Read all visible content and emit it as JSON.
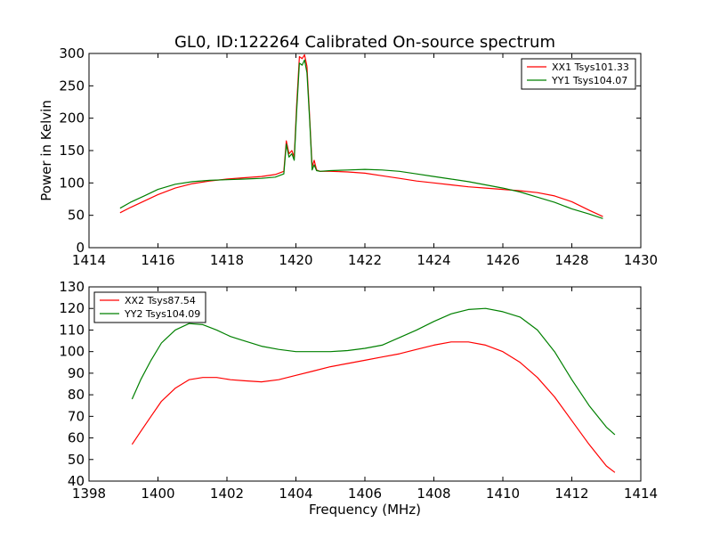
{
  "chart_data": [
    {
      "type": "line",
      "title": "GL0, ID:122264 Calibrated On-source spectrum",
      "xlabel": "",
      "ylabel": "Power in Kelvin",
      "xlim": [
        1414,
        1430
      ],
      "ylim": [
        0,
        300
      ],
      "xticks": [
        "1414",
        "1416",
        "1418",
        "1420",
        "1422",
        "1424",
        "1426",
        "1428",
        "1430"
      ],
      "yticks": [
        "0",
        "50",
        "100",
        "150",
        "200",
        "250",
        "300"
      ],
      "grid": false,
      "legend_position": "top-right",
      "series": [
        {
          "name": "XX1 Tsys101.33",
          "color": "#ff0000",
          "x": [
            1414.9,
            1415.2,
            1415.6,
            1416.0,
            1416.5,
            1417.0,
            1417.5,
            1418.0,
            1418.5,
            1419.0,
            1419.4,
            1419.65,
            1419.72,
            1419.8,
            1419.88,
            1419.95,
            1420.02,
            1420.1,
            1420.18,
            1420.25,
            1420.32,
            1420.4,
            1420.47,
            1420.53,
            1420.6,
            1420.7,
            1421.0,
            1421.5,
            1422.0,
            1422.5,
            1423.0,
            1423.5,
            1424.0,
            1424.5,
            1425.0,
            1425.5,
            1426.0,
            1426.5,
            1427.0,
            1427.5,
            1428.0,
            1428.5,
            1428.9
          ],
          "y": [
            54,
            62,
            72,
            82,
            92,
            99,
            103,
            106,
            108,
            110,
            113,
            118,
            165,
            145,
            150,
            140,
            220,
            295,
            292,
            298,
            280,
            200,
            125,
            135,
            120,
            118,
            118,
            117,
            115,
            111,
            107,
            103,
            100,
            97,
            94,
            92,
            90,
            88,
            85,
            80,
            71,
            58,
            48
          ]
        },
        {
          "name": "YY1 Tsys104.07",
          "color": "#008000",
          "x": [
            1414.9,
            1415.2,
            1415.6,
            1416.0,
            1416.5,
            1417.0,
            1417.5,
            1418.0,
            1418.5,
            1419.0,
            1419.4,
            1419.65,
            1419.72,
            1419.8,
            1419.88,
            1419.95,
            1420.02,
            1420.1,
            1420.18,
            1420.25,
            1420.32,
            1420.4,
            1420.47,
            1420.53,
            1420.6,
            1420.7,
            1421.0,
            1421.5,
            1422.0,
            1422.5,
            1423.0,
            1423.5,
            1424.0,
            1424.5,
            1425.0,
            1425.5,
            1426.0,
            1426.5,
            1427.0,
            1427.5,
            1428.0,
            1428.5,
            1428.9
          ],
          "y": [
            61,
            70,
            80,
            90,
            98,
            102,
            104,
            105,
            106,
            107,
            109,
            114,
            160,
            140,
            145,
            135,
            210,
            285,
            282,
            290,
            270,
            195,
            120,
            128,
            119,
            118,
            119,
            120,
            121,
            120,
            118,
            114,
            110,
            106,
            102,
            97,
            92,
            86,
            78,
            70,
            60,
            52,
            45
          ]
        }
      ]
    },
    {
      "type": "line",
      "title": "",
      "xlabel": "Frequency (MHz)",
      "ylabel": "",
      "xlim": [
        1398,
        1414
      ],
      "ylim": [
        40,
        130
      ],
      "xticks": [
        "1398",
        "1400",
        "1402",
        "1404",
        "1406",
        "1408",
        "1410",
        "1412",
        "1414"
      ],
      "yticks": [
        "40",
        "50",
        "60",
        "70",
        "80",
        "90",
        "100",
        "110",
        "120",
        "130"
      ],
      "grid": false,
      "legend_position": "top-left",
      "series": [
        {
          "name": "XX2 Tsys87.54",
          "color": "#ff0000",
          "x": [
            1399.25,
            1399.5,
            1399.8,
            1400.1,
            1400.5,
            1400.9,
            1401.3,
            1401.7,
            1402.1,
            1402.5,
            1403.0,
            1403.5,
            1404.0,
            1404.5,
            1405.0,
            1405.5,
            1406.0,
            1406.5,
            1407.0,
            1407.5,
            1408.0,
            1408.5,
            1409.0,
            1409.5,
            1410.0,
            1410.5,
            1411.0,
            1411.5,
            1412.0,
            1412.5,
            1413.0,
            1413.25
          ],
          "y": [
            57,
            63,
            70,
            77,
            83,
            87,
            88,
            88,
            87,
            86.5,
            86,
            87,
            89,
            91,
            93,
            94.5,
            96,
            97.5,
            99,
            101,
            103,
            104.5,
            104.5,
            103,
            100,
            95,
            88,
            79,
            68,
            57,
            47,
            44
          ]
        },
        {
          "name": "YY2 Tsys104.09",
          "color": "#008000",
          "x": [
            1399.25,
            1399.5,
            1399.8,
            1400.1,
            1400.5,
            1400.9,
            1401.3,
            1401.7,
            1402.1,
            1402.5,
            1403.0,
            1403.5,
            1404.0,
            1404.5,
            1405.0,
            1405.5,
            1406.0,
            1406.5,
            1407.0,
            1407.5,
            1408.0,
            1408.5,
            1409.0,
            1409.5,
            1410.0,
            1410.5,
            1411.0,
            1411.5,
            1412.0,
            1412.5,
            1413.0,
            1413.25
          ],
          "y": [
            78,
            87,
            96,
            104,
            110,
            113,
            112.5,
            110,
            107,
            105,
            102.5,
            101,
            100,
            100,
            100,
            100.5,
            101.5,
            103,
            106.5,
            110,
            114,
            117.5,
            119.5,
            120,
            118.5,
            116,
            110,
            100,
            87,
            75,
            65,
            61.5
          ]
        }
      ]
    }
  ]
}
